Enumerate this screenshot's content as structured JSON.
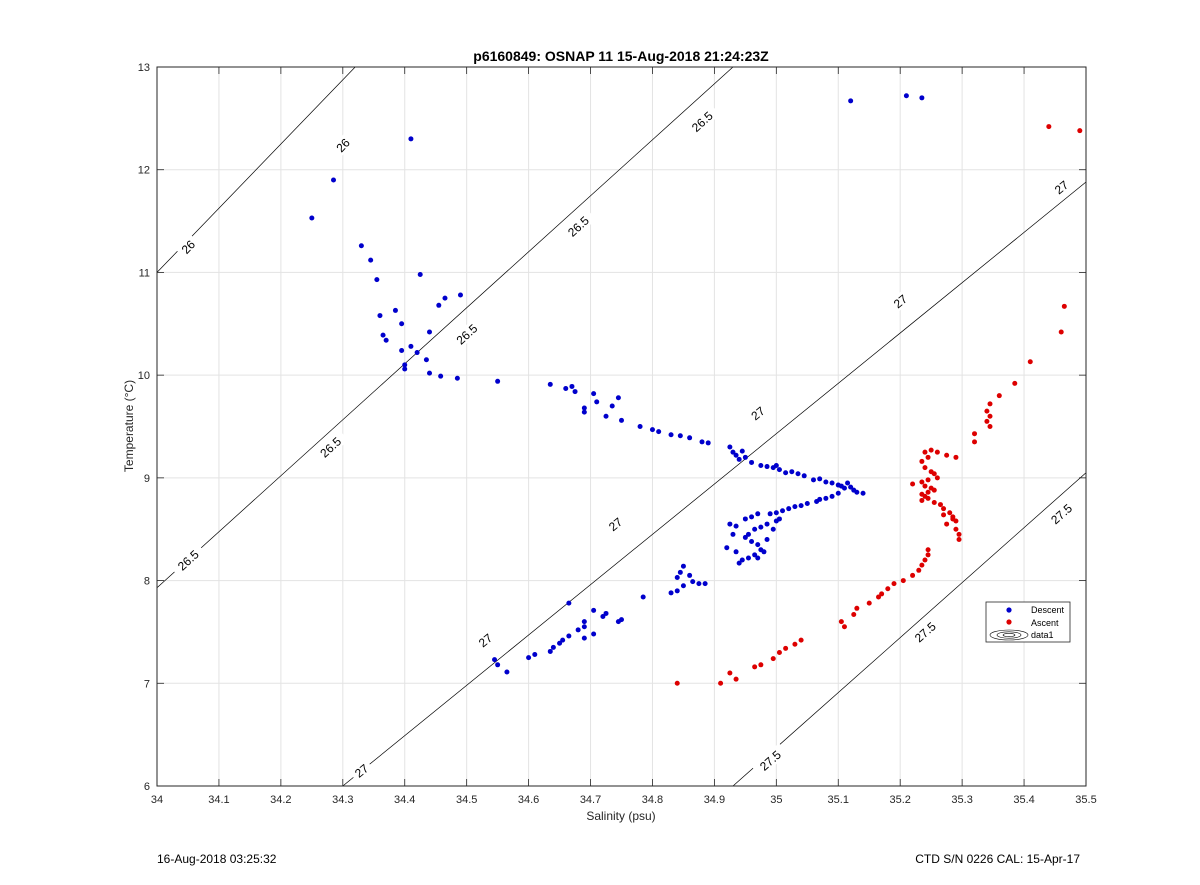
{
  "chart_data": {
    "type": "scatter",
    "title": "p6160849: OSNAP 11 15-Aug-2018 21:24:23Z",
    "xlabel": "Salinity (psu)",
    "ylabel": "Temperature (°C)",
    "xlim": [
      34,
      35.5
    ],
    "ylim": [
      6,
      13
    ],
    "xticks": [
      "34",
      "34.1",
      "34.2",
      "34.3",
      "34.4",
      "34.5",
      "34.6",
      "34.7",
      "34.8",
      "34.9",
      "35",
      "35.1",
      "35.2",
      "35.3",
      "35.4",
      "35.5"
    ],
    "xtick_values": [
      34,
      34.1,
      34.2,
      34.3,
      34.4,
      34.5,
      34.6,
      34.7,
      34.8,
      34.9,
      35,
      35.1,
      35.2,
      35.3,
      35.4,
      35.5
    ],
    "yticks": [
      "6",
      "7",
      "8",
      "9",
      "10",
      "11",
      "12",
      "13"
    ],
    "ytick_values": [
      6,
      7,
      8,
      9,
      10,
      11,
      12,
      13
    ],
    "grid": true,
    "legend_position": "right",
    "legend": [
      "Descent",
      "Ascent",
      "data1"
    ],
    "contours": {
      "name": "data1",
      "levels": [
        {
          "value": 26.0,
          "label": "26",
          "line": [
            [
              34.0,
              11.0
            ],
            [
              34.32,
              13.0
            ]
          ],
          "labels_at": [
            [
              34.05,
              11.25
            ],
            [
              34.3,
              12.24
            ]
          ]
        },
        {
          "value": 26.5,
          "label": "26.5",
          "line": [
            [
              34.0,
              7.93
            ],
            [
              34.93,
              13.0
            ]
          ],
          "labels_at": [
            [
              34.05,
              8.2
            ],
            [
              34.28,
              9.3
            ],
            [
              34.5,
              10.4
            ],
            [
              34.68,
              11.45
            ],
            [
              34.88,
              12.47
            ]
          ]
        },
        {
          "value": 27.0,
          "label": "27",
          "line": [
            [
              34.3,
              6.0
            ],
            [
              35.5,
              11.88
            ]
          ],
          "labels_at": [
            [
              34.33,
              6.15
            ],
            [
              34.53,
              7.42
            ],
            [
              34.74,
              8.55
            ],
            [
              34.97,
              9.63
            ],
            [
              35.2,
              10.72
            ],
            [
              35.46,
              11.83
            ]
          ]
        },
        {
          "value": 27.5,
          "label": "27.5",
          "line": [
            [
              34.93,
              6.0
            ],
            [
              35.5,
              9.05
            ]
          ],
          "labels_at": [
            [
              34.99,
              6.25
            ],
            [
              35.24,
              7.5
            ],
            [
              35.46,
              8.65
            ]
          ]
        }
      ]
    },
    "series": [
      {
        "name": "Descent",
        "color": "#0000cc",
        "points": [
          [
            34.25,
            11.53
          ],
          [
            34.285,
            11.9
          ],
          [
            34.41,
            12.3
          ],
          [
            35.12,
            12.67
          ],
          [
            35.21,
            12.72
          ],
          [
            35.235,
            12.7
          ],
          [
            34.33,
            11.26
          ],
          [
            34.345,
            11.12
          ],
          [
            34.355,
            10.93
          ],
          [
            34.36,
            10.58
          ],
          [
            34.365,
            10.39
          ],
          [
            34.37,
            10.34
          ],
          [
            34.385,
            10.63
          ],
          [
            34.395,
            10.5
          ],
          [
            34.395,
            10.24
          ],
          [
            34.4,
            10.1
          ],
          [
            34.4,
            10.06
          ],
          [
            34.41,
            10.28
          ],
          [
            34.42,
            10.22
          ],
          [
            34.425,
            10.98
          ],
          [
            34.435,
            10.15
          ],
          [
            34.44,
            10.42
          ],
          [
            34.44,
            10.02
          ],
          [
            34.455,
            10.68
          ],
          [
            34.465,
            10.75
          ],
          [
            34.458,
            9.99
          ],
          [
            34.485,
            9.97
          ],
          [
            34.49,
            10.78
          ],
          [
            34.55,
            9.94
          ],
          [
            34.635,
            9.91
          ],
          [
            34.66,
            9.87
          ],
          [
            34.67,
            9.89
          ],
          [
            34.675,
            9.84
          ],
          [
            34.69,
            9.68
          ],
          [
            34.69,
            9.64
          ],
          [
            34.705,
            9.82
          ],
          [
            34.71,
            9.74
          ],
          [
            34.725,
            9.6
          ],
          [
            34.735,
            9.7
          ],
          [
            34.745,
            9.78
          ],
          [
            34.75,
            9.56
          ],
          [
            34.78,
            9.5
          ],
          [
            34.8,
            9.47
          ],
          [
            34.81,
            9.45
          ],
          [
            34.83,
            9.42
          ],
          [
            34.845,
            9.41
          ],
          [
            34.86,
            9.39
          ],
          [
            34.88,
            9.35
          ],
          [
            34.89,
            9.34
          ],
          [
            34.925,
            9.3
          ],
          [
            34.93,
            9.25
          ],
          [
            34.935,
            9.22
          ],
          [
            34.94,
            9.18
          ],
          [
            34.945,
            9.26
          ],
          [
            34.95,
            9.2
          ],
          [
            34.96,
            9.15
          ],
          [
            34.975,
            9.12
          ],
          [
            34.985,
            9.11
          ],
          [
            34.995,
            9.1
          ],
          [
            35.0,
            9.12
          ],
          [
            35.005,
            9.08
          ],
          [
            35.015,
            9.05
          ],
          [
            35.025,
            9.06
          ],
          [
            35.035,
            9.04
          ],
          [
            35.045,
            9.02
          ],
          [
            35.06,
            8.98
          ],
          [
            35.07,
            8.99
          ],
          [
            35.08,
            8.96
          ],
          [
            35.09,
            8.95
          ],
          [
            35.1,
            8.93
          ],
          [
            35.11,
            8.9
          ],
          [
            35.12,
            8.91
          ],
          [
            35.125,
            8.88
          ],
          [
            35.13,
            8.86
          ],
          [
            35.14,
            8.85
          ],
          [
            35.105,
            8.92
          ],
          [
            35.115,
            8.95
          ],
          [
            35.1,
            8.85
          ],
          [
            35.09,
            8.82
          ],
          [
            35.08,
            8.8
          ],
          [
            35.07,
            8.79
          ],
          [
            35.065,
            8.77
          ],
          [
            35.05,
            8.75
          ],
          [
            35.04,
            8.73
          ],
          [
            35.03,
            8.72
          ],
          [
            35.02,
            8.7
          ],
          [
            35.01,
            8.68
          ],
          [
            35.0,
            8.66
          ],
          [
            34.99,
            8.65
          ],
          [
            35.0,
            8.58
          ],
          [
            34.985,
            8.55
          ],
          [
            34.975,
            8.52
          ],
          [
            34.965,
            8.5
          ],
          [
            34.955,
            8.45
          ],
          [
            34.95,
            8.42
          ],
          [
            34.96,
            8.38
          ],
          [
            34.97,
            8.35
          ],
          [
            34.975,
            8.3
          ],
          [
            34.98,
            8.28
          ],
          [
            34.965,
            8.25
          ],
          [
            34.955,
            8.22
          ],
          [
            34.945,
            8.2
          ],
          [
            34.94,
            8.17
          ],
          [
            34.95,
            8.6
          ],
          [
            34.96,
            8.62
          ],
          [
            34.97,
            8.65
          ],
          [
            34.925,
            8.55
          ],
          [
            34.935,
            8.53
          ],
          [
            34.92,
            8.32
          ],
          [
            34.935,
            8.28
          ],
          [
            34.97,
            8.22
          ],
          [
            34.985,
            8.4
          ],
          [
            34.995,
            8.5
          ],
          [
            35.005,
            8.6
          ],
          [
            34.93,
            8.45
          ],
          [
            34.865,
            7.99
          ],
          [
            34.875,
            7.97
          ],
          [
            34.885,
            7.97
          ],
          [
            34.85,
            8.14
          ],
          [
            34.845,
            8.08
          ],
          [
            34.86,
            8.05
          ],
          [
            34.84,
            8.03
          ],
          [
            34.85,
            7.95
          ],
          [
            34.84,
            7.9
          ],
          [
            34.83,
            7.88
          ],
          [
            34.785,
            7.84
          ],
          [
            34.745,
            7.6
          ],
          [
            34.75,
            7.62
          ],
          [
            34.725,
            7.68
          ],
          [
            34.72,
            7.65
          ],
          [
            34.705,
            7.71
          ],
          [
            34.69,
            7.6
          ],
          [
            34.69,
            7.55
          ],
          [
            34.68,
            7.52
          ],
          [
            34.665,
            7.78
          ],
          [
            34.665,
            7.46
          ],
          [
            34.655,
            7.42
          ],
          [
            34.65,
            7.39
          ],
          [
            34.64,
            7.35
          ],
          [
            34.635,
            7.31
          ],
          [
            34.61,
            7.28
          ],
          [
            34.6,
            7.25
          ],
          [
            34.565,
            7.11
          ],
          [
            34.55,
            7.18
          ],
          [
            34.545,
            7.23
          ],
          [
            34.69,
            7.44
          ],
          [
            34.705,
            7.48
          ]
        ]
      },
      {
        "name": "Ascent",
        "color": "#dd0000",
        "points": [
          [
            35.44,
            12.42
          ],
          [
            35.49,
            12.38
          ],
          [
            35.465,
            10.67
          ],
          [
            35.46,
            10.42
          ],
          [
            35.41,
            10.13
          ],
          [
            35.385,
            9.92
          ],
          [
            35.36,
            9.8
          ],
          [
            35.345,
            9.72
          ],
          [
            35.34,
            9.65
          ],
          [
            35.345,
            9.6
          ],
          [
            35.34,
            9.55
          ],
          [
            35.345,
            9.5
          ],
          [
            35.32,
            9.43
          ],
          [
            35.32,
            9.35
          ],
          [
            35.29,
            9.2
          ],
          [
            35.275,
            9.22
          ],
          [
            35.26,
            9.25
          ],
          [
            35.25,
            9.27
          ],
          [
            35.245,
            9.2
          ],
          [
            35.24,
            9.25
          ],
          [
            35.235,
            9.16
          ],
          [
            35.24,
            9.1
          ],
          [
            35.25,
            9.06
          ],
          [
            35.255,
            9.04
          ],
          [
            35.26,
            9.0
          ],
          [
            35.245,
            8.98
          ],
          [
            35.235,
            8.96
          ],
          [
            35.22,
            8.94
          ],
          [
            35.24,
            8.92
          ],
          [
            35.25,
            8.9
          ],
          [
            35.255,
            8.88
          ],
          [
            35.245,
            8.86
          ],
          [
            35.235,
            8.84
          ],
          [
            35.24,
            8.82
          ],
          [
            35.245,
            8.8
          ],
          [
            35.235,
            8.78
          ],
          [
            35.255,
            8.76
          ],
          [
            35.265,
            8.74
          ],
          [
            35.27,
            8.7
          ],
          [
            35.28,
            8.66
          ],
          [
            35.285,
            8.62
          ],
          [
            35.29,
            8.58
          ],
          [
            35.275,
            8.55
          ],
          [
            35.29,
            8.5
          ],
          [
            35.295,
            8.45
          ],
          [
            35.295,
            8.4
          ],
          [
            35.285,
            8.6
          ],
          [
            35.27,
            8.64
          ],
          [
            35.245,
            8.3
          ],
          [
            35.245,
            8.25
          ],
          [
            35.24,
            8.2
          ],
          [
            35.235,
            8.15
          ],
          [
            35.23,
            8.1
          ],
          [
            35.22,
            8.05
          ],
          [
            35.205,
            8.0
          ],
          [
            35.19,
            7.97
          ],
          [
            35.18,
            7.92
          ],
          [
            35.17,
            7.87
          ],
          [
            35.165,
            7.84
          ],
          [
            35.15,
            7.78
          ],
          [
            35.13,
            7.73
          ],
          [
            35.125,
            7.67
          ],
          [
            35.105,
            7.6
          ],
          [
            35.11,
            7.55
          ],
          [
            35.04,
            7.42
          ],
          [
            35.03,
            7.38
          ],
          [
            35.015,
            7.34
          ],
          [
            35.005,
            7.3
          ],
          [
            34.995,
            7.24
          ],
          [
            34.975,
            7.18
          ],
          [
            34.965,
            7.16
          ],
          [
            34.935,
            7.04
          ],
          [
            34.925,
            7.1
          ],
          [
            34.91,
            7.0
          ],
          [
            34.84,
            7.0
          ]
        ]
      }
    ]
  },
  "footer": {
    "left": "16-Aug-2018 03:25:32",
    "right": "CTD S/N 0226  CAL: 15-Apr-17"
  }
}
